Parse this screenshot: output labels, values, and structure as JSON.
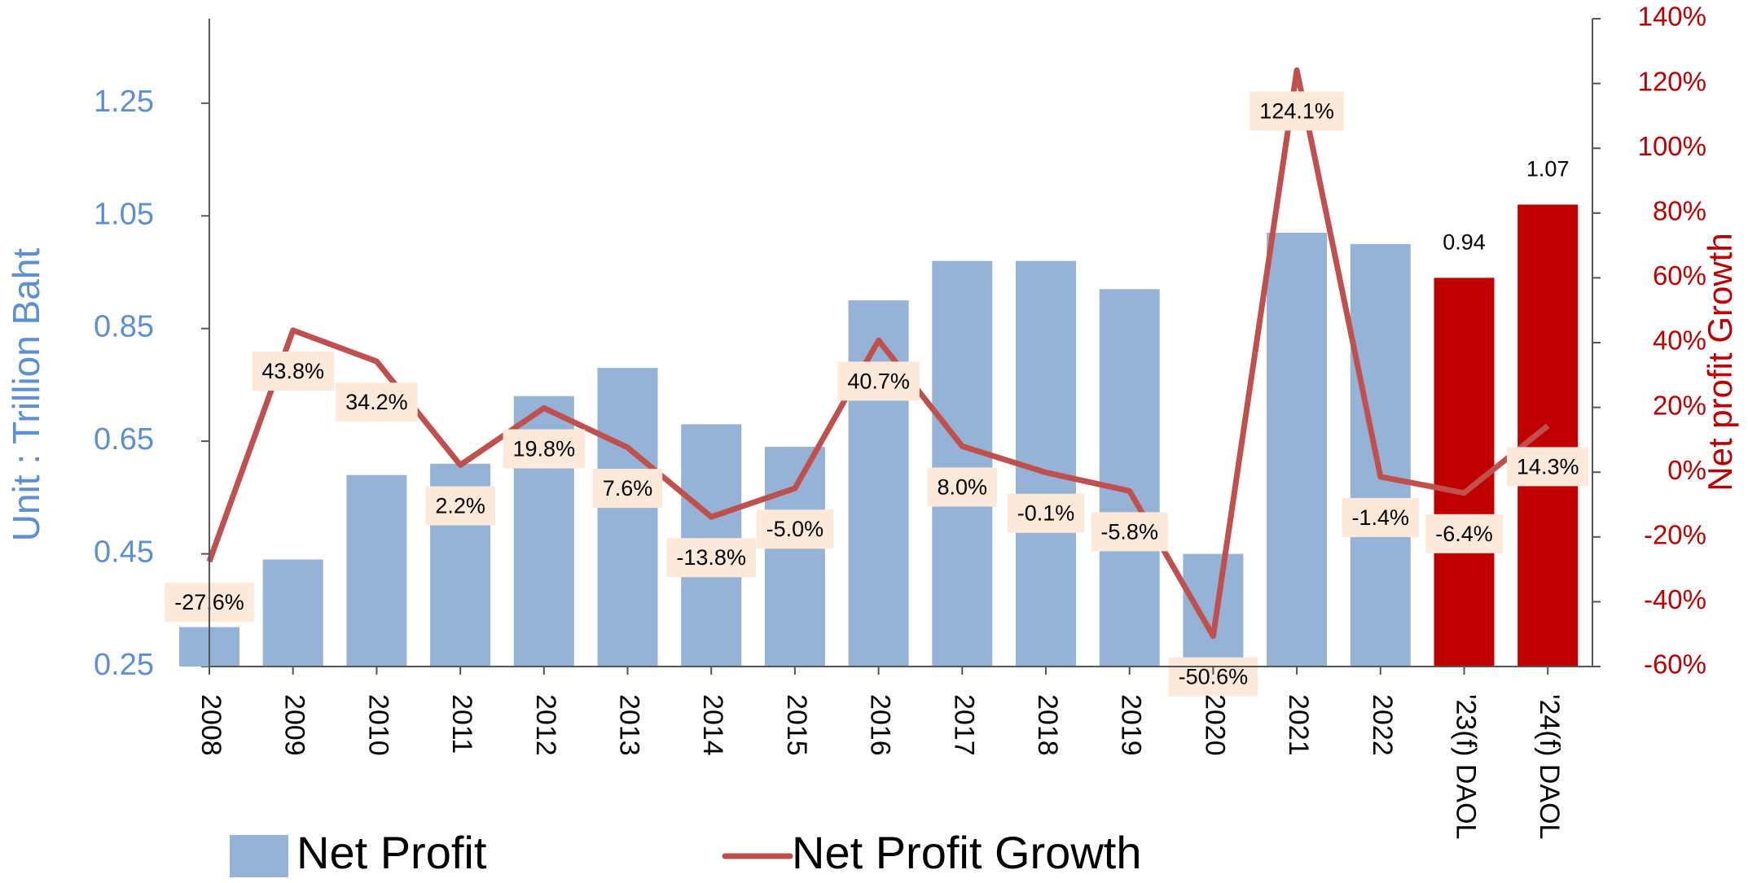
{
  "chart_data": {
    "type": "bar_line",
    "categories": [
      "2008",
      "2009",
      "2010",
      "2011",
      "2012",
      "2013",
      "2014",
      "2015",
      "2016",
      "2017",
      "2018",
      "2019",
      "2020",
      "2021",
      "2022",
      "'23(f) DAOL",
      "'24(f) DAOL"
    ],
    "series": [
      {
        "name": "Net Profit",
        "type": "bar",
        "color": "#95b3d7",
        "colors": [
          "#95b3d7",
          "#95b3d7",
          "#95b3d7",
          "#95b3d7",
          "#95b3d7",
          "#95b3d7",
          "#95b3d7",
          "#95b3d7",
          "#95b3d7",
          "#95b3d7",
          "#95b3d7",
          "#95b3d7",
          "#95b3d7",
          "#95b3d7",
          "#95b3d7",
          "#c00000",
          "#c00000"
        ],
        "values": [
          0.32,
          0.44,
          0.59,
          0.61,
          0.73,
          0.78,
          0.68,
          0.64,
          0.9,
          0.97,
          0.97,
          0.92,
          0.45,
          1.02,
          1.0,
          0.94,
          1.07
        ],
        "value_labels": [
          null,
          null,
          null,
          null,
          null,
          null,
          null,
          null,
          null,
          null,
          null,
          null,
          null,
          null,
          null,
          "0.94",
          "1.07"
        ]
      },
      {
        "name": "Net Profit Growth",
        "type": "line",
        "axis": "y2",
        "color": "#c0504d",
        "values": [
          -27.6,
          43.8,
          34.2,
          2.2,
          19.8,
          7.6,
          -13.8,
          -5.0,
          40.7,
          8.0,
          -0.1,
          -5.8,
          -50.6,
          124.1,
          -1.4,
          -6.4,
          14.3
        ],
        "value_labels": [
          "-27.6%",
          "43.8%",
          "34.2%",
          "2.2%",
          "19.8%",
          "7.6%",
          "-13.8%",
          "-5.0%",
          "40.7%",
          "8.0%",
          "-0.1%",
          "-5.8%",
          "-50.6%",
          "124.1%",
          "-1.4%",
          "-6.4%",
          "14.3%"
        ]
      }
    ],
    "ylabel": "Unit : Trillion Baht",
    "y2label": "Net profit Growth",
    "ylim": [
      0.25,
      1.4
    ],
    "yticks": [
      0.25,
      0.45,
      0.65,
      0.85,
      1.05,
      1.25
    ],
    "y2lim": [
      -60,
      140
    ],
    "y2ticks": [
      {
        "value": -60,
        "label": "-60%"
      },
      {
        "value": -40,
        "label": "-40%"
      },
      {
        "value": -20,
        "label": "-20%"
      },
      {
        "value": 0,
        "label": "0%"
      },
      {
        "value": 20,
        "label": "20%"
      },
      {
        "value": 40,
        "label": "40%"
      },
      {
        "value": 60,
        "label": "60%"
      },
      {
        "value": 80,
        "label": "80%"
      },
      {
        "value": 100,
        "label": "100%"
      },
      {
        "value": 120,
        "label": "120%"
      },
      {
        "value": 140,
        "label": "140%"
      }
    ]
  }
}
